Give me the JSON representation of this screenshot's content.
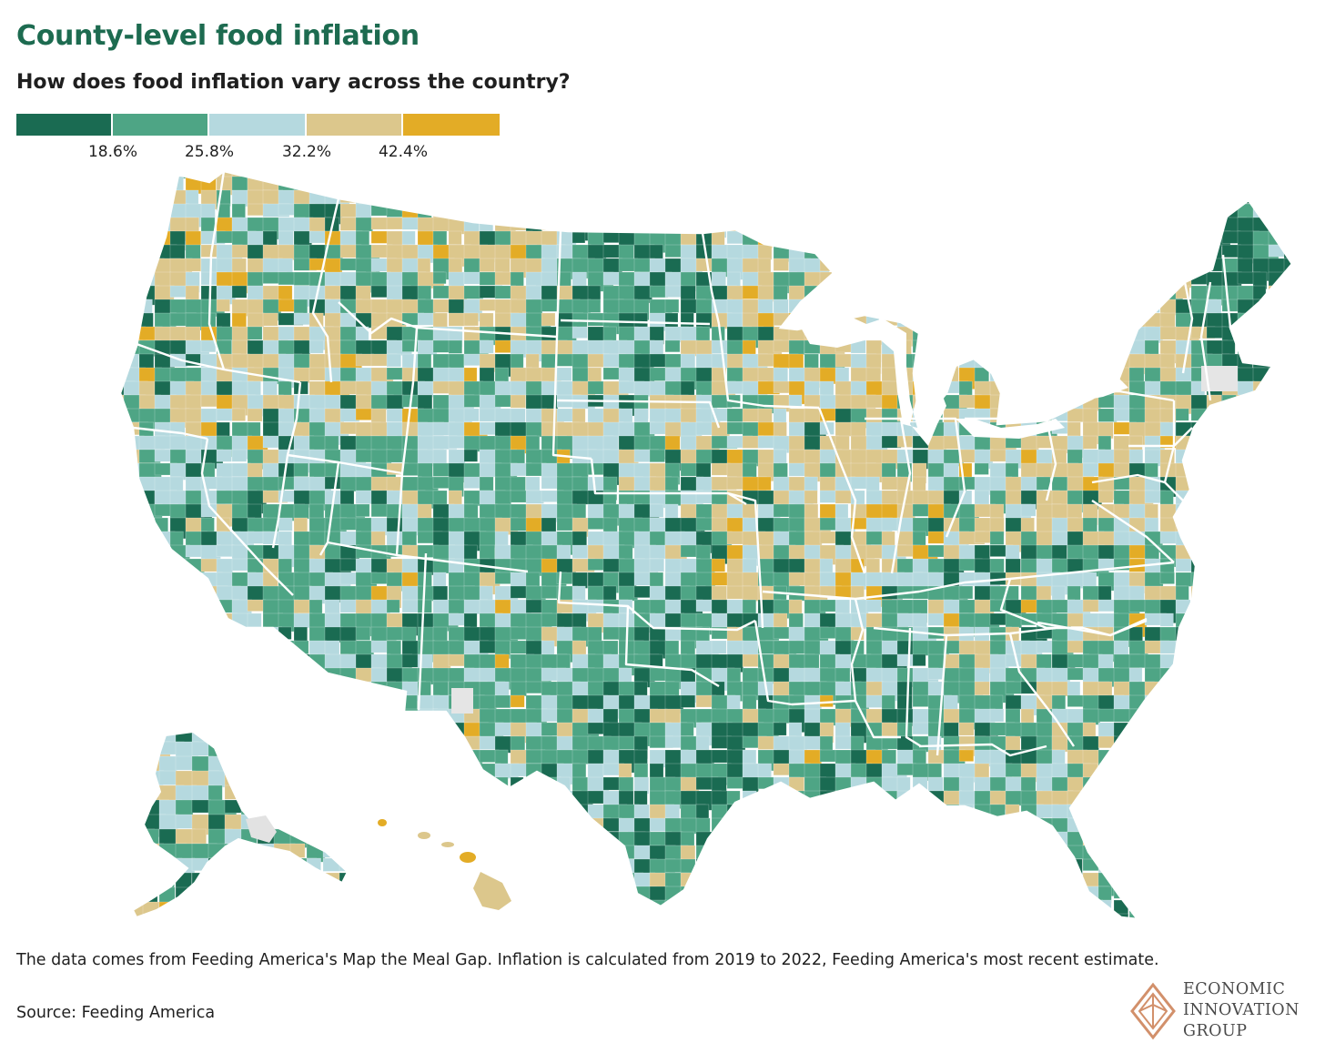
{
  "header": {
    "title": "County-level food inflation",
    "subtitle": "How does food inflation vary across the country?"
  },
  "legend": {
    "colors": [
      "#1a6b52",
      "#4ea585",
      "#b5d9df",
      "#dcc78c",
      "#e3ac26"
    ],
    "thresholds": [
      "18.6%",
      "25.8%",
      "32.2%",
      "42.4%"
    ],
    "threshold_values": [
      18.6,
      25.8,
      32.2,
      42.4
    ]
  },
  "map": {
    "no_data_color": "#e5e5e5",
    "border_color": "#ffffff"
  },
  "footer": {
    "note": "The data comes from Feeding America's Map the Meal Gap. Inflation is calculated from 2019 to 2022, Feeding America's most recent estimate.",
    "source": "Source: Feeding America"
  },
  "logo": {
    "line1": "ECONOMIC",
    "line2": "INNOVATION",
    "line3": "GROUP",
    "color": "#d2906b"
  }
}
